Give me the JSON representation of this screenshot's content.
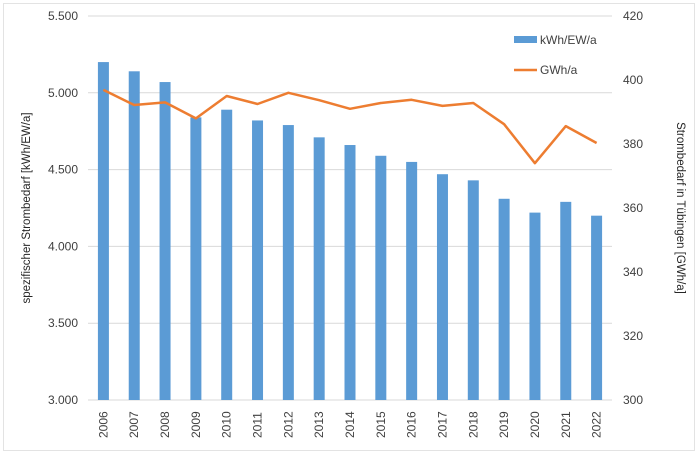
{
  "chart_data": {
    "type": "bar",
    "title": "",
    "categories": [
      "2006",
      "2007",
      "2008",
      "2009",
      "2010",
      "2011",
      "2012",
      "2013",
      "2014",
      "2015",
      "2016",
      "2017",
      "2018",
      "2019",
      "2020",
      "2021",
      "2022"
    ],
    "series": [
      {
        "name": "kWh/EW/a",
        "type": "bar",
        "axis": "left",
        "color": "#5b9bd5",
        "values": [
          5200,
          5140,
          5070,
          4840,
          4890,
          4820,
          4790,
          4710,
          4660,
          4590,
          4550,
          4470,
          4430,
          4310,
          4220,
          4290,
          4200
        ]
      },
      {
        "name": "GWh/a",
        "type": "line",
        "axis": "right",
        "color": "#ed7d31",
        "values": [
          396.9,
          392.2,
          393.0,
          388.0,
          395.0,
          392.5,
          396.0,
          393.7,
          391.0,
          392.8,
          393.8,
          391.9,
          392.8,
          386.2,
          374.0,
          385.6,
          380.3
        ]
      }
    ],
    "xlabel": "",
    "ylabel": "spezifischer Strombedarf [kWh/EW/a]",
    "y2label": "Strombedarf in Tübingen [GWh/a]",
    "ylim": [
      3000,
      5500
    ],
    "y2lim": [
      300,
      420
    ],
    "yticks": [
      "3.000",
      "3.500",
      "4.000",
      "4.500",
      "5.000",
      "5.500"
    ],
    "ytick_values": [
      3000,
      3500,
      4000,
      4500,
      5000,
      5500
    ],
    "y2ticks": [
      "300",
      "320",
      "340",
      "360",
      "380",
      "400",
      "420"
    ],
    "y2tick_values": [
      300,
      320,
      340,
      360,
      380,
      400,
      420
    ],
    "grid": true,
    "legend": {
      "placement": "top-right",
      "entries": [
        "kWh/EW/a",
        "GWh/a"
      ]
    }
  }
}
